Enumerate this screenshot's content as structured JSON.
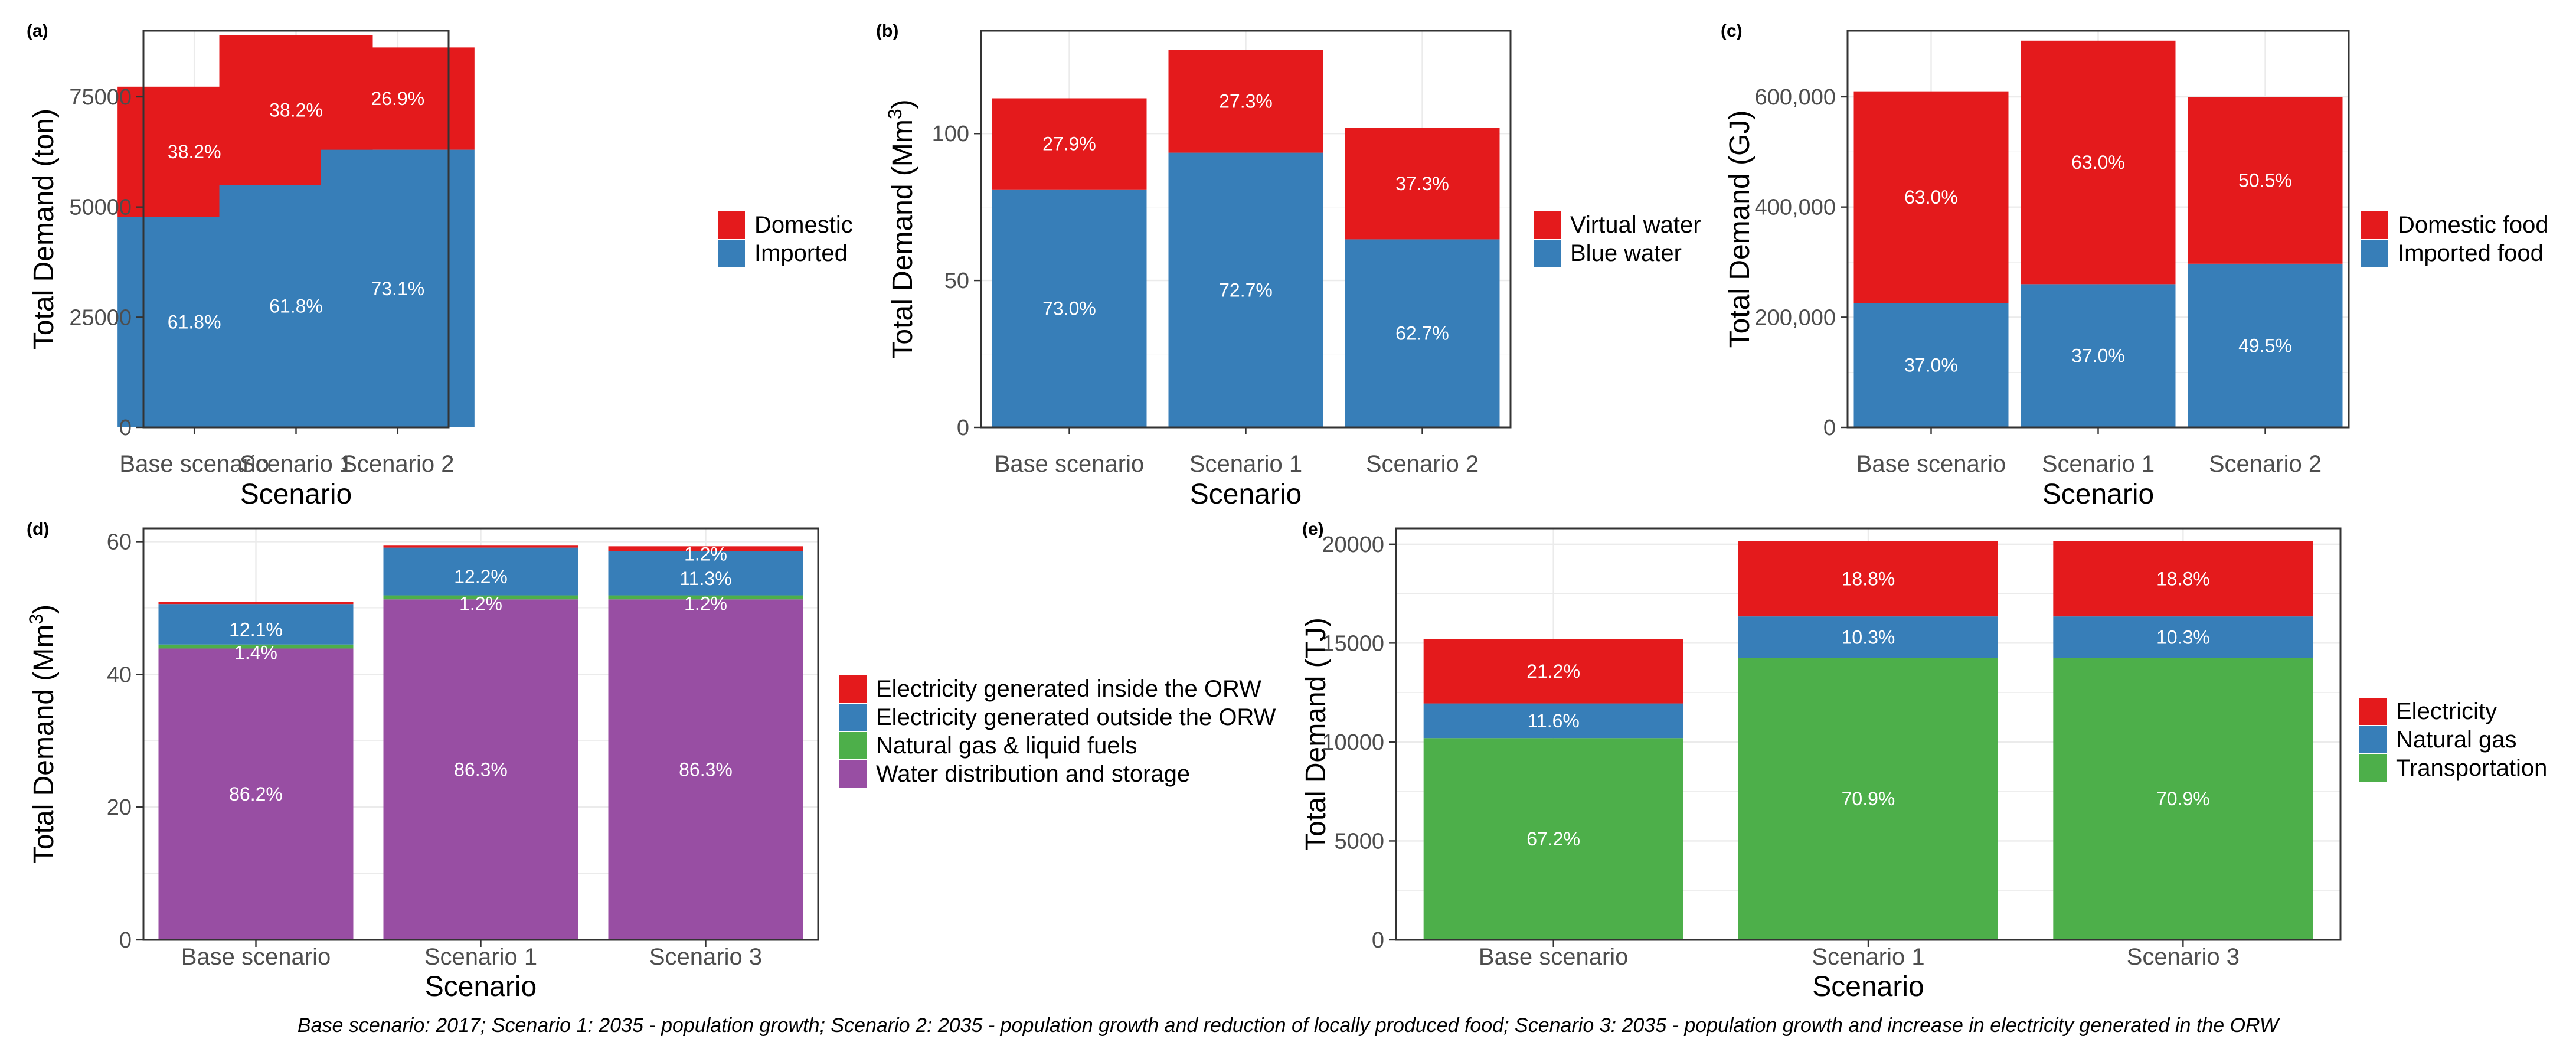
{
  "colors": {
    "red": "#e41a1c",
    "blue": "#377eb8",
    "green": "#4daf4a",
    "purple": "#984ea3",
    "panel_border": "#333333",
    "grid": "#ebebeb",
    "tick_text": "#4d4d4d"
  },
  "caption": "Base scenario: 2017; Scenario 1: 2035 - population growth; Scenario 2: 2035 - population growth and reduction of locally produced food; Scenario 3: 2035 - population growth and increase in electricity generated in the ORW",
  "chart_data": [
    {
      "panel": "(a)",
      "type": "bar",
      "stacked": true,
      "xlabel": "Scenario",
      "ylabel": "Total Demand (ton)",
      "ylim": [
        0,
        90000
      ],
      "yticks": [
        0,
        25000,
        50000,
        75000
      ],
      "ytick_labels": [
        "0",
        "25000",
        "50000",
        "75000"
      ],
      "categories": [
        "Base scenario",
        "Scenario 1",
        "Scenario 2"
      ],
      "series": [
        {
          "name": "Imported",
          "color": "#377eb8",
          "values": [
            47800,
            55000,
            63000
          ],
          "labels": [
            "61.8%",
            "61.8%",
            "73.1%"
          ]
        },
        {
          "name": "Domestic",
          "color": "#e41a1c",
          "values": [
            29500,
            34000,
            23200
          ],
          "labels": [
            "38.2%",
            "38.2%",
            "26.9%"
          ]
        }
      ],
      "legend": {
        "placement": "right",
        "entries": [
          "Domestic",
          "Imported"
        ]
      }
    },
    {
      "panel": "(b)",
      "type": "bar",
      "stacked": true,
      "xlabel": "Scenario",
      "ylabel": "Total Demand (Mm",
      "ylabel_sup": "3",
      "ylabel_end": ")",
      "ylim": [
        0,
        135
      ],
      "yticks": [
        0,
        50,
        100
      ],
      "ytick_labels": [
        "0",
        "50",
        "100"
      ],
      "categories": [
        "Base scenario",
        "Scenario 1",
        "Scenario 2"
      ],
      "series": [
        {
          "name": "Blue water",
          "color": "#377eb8",
          "values": [
            81,
            93.5,
            64
          ],
          "labels": [
            "73.0%",
            "72.7%",
            "62.7%"
          ]
        },
        {
          "name": "Virtual water",
          "color": "#e41a1c",
          "values": [
            31,
            35,
            38
          ],
          "labels": [
            "27.9%",
            "27.3%",
            "37.3%"
          ]
        }
      ],
      "legend": {
        "placement": "right",
        "entries": [
          "Virtual water",
          "Blue water"
        ]
      }
    },
    {
      "panel": "(c)",
      "type": "bar",
      "stacked": true,
      "xlabel": "Scenario",
      "ylabel": "Total Demand (GJ)",
      "ylim": [
        0,
        720000
      ],
      "yticks": [
        0,
        200000,
        400000,
        600000
      ],
      "ytick_labels": [
        "0",
        "200,000",
        "400,000",
        "600,000"
      ],
      "categories": [
        "Base scenario",
        "Scenario 1",
        "Scenario 2"
      ],
      "series": [
        {
          "name": "Imported food",
          "color": "#377eb8",
          "values": [
            226000,
            260000,
            297000
          ],
          "labels": [
            "37.0%",
            "37.0%",
            "49.5%"
          ]
        },
        {
          "name": "Domestic food",
          "color": "#e41a1c",
          "values": [
            384000,
            442000,
            303000
          ],
          "labels": [
            "63.0%",
            "63.0%",
            "50.5%"
          ]
        }
      ],
      "legend": {
        "placement": "right",
        "entries": [
          "Domestic food",
          "Imported food"
        ]
      }
    },
    {
      "panel": "(d)",
      "type": "bar",
      "stacked": true,
      "xlabel": "Scenario",
      "ylabel": "Total Demand (Mm",
      "ylabel_sup": "3",
      "ylabel_end": ")",
      "ylim": [
        0,
        62
      ],
      "yticks": [
        0,
        20,
        40,
        60
      ],
      "ytick_labels": [
        "0",
        "20",
        "40",
        "60"
      ],
      "categories": [
        "Base scenario",
        "Scenario 1",
        "Scenario 3"
      ],
      "series": [
        {
          "name": "Water distribution and storage",
          "color": "#984ea3",
          "values": [
            43.9,
            51.3,
            51.3
          ],
          "labels": [
            "86.2%",
            "86.3%",
            "86.3%"
          ]
        },
        {
          "name": "Natural gas & liquid fuels",
          "color": "#4daf4a",
          "values": [
            0.6,
            0.6,
            0.6
          ],
          "labels": [
            "1.4%",
            "1.2%",
            "1.2%"
          ]
        },
        {
          "name": "Electricity generated outside the ORW",
          "color": "#377eb8",
          "values": [
            6.1,
            7.2,
            6.7
          ],
          "labels": [
            "12.1%",
            "12.2%",
            "11.3%"
          ]
        },
        {
          "name": "Electricity generated inside the ORW",
          "color": "#e41a1c",
          "values": [
            0.3,
            0.3,
            0.7
          ],
          "labels": [
            "",
            "",
            "1.2%"
          ]
        }
      ],
      "legend": {
        "placement": "right",
        "entries": [
          "Electricity generated inside the ORW",
          "Electricity generated outside the ORW",
          "Natural gas & liquid fuels",
          "Water distribution and storage"
        ]
      }
    },
    {
      "panel": "(e)",
      "type": "bar",
      "stacked": true,
      "xlabel": "Scenario",
      "ylabel": "Total Demand (TJ)",
      "ylim": [
        0,
        20800
      ],
      "yticks": [
        0,
        5000,
        10000,
        15000,
        20000
      ],
      "ytick_labels": [
        "0",
        "5000",
        "10000",
        "15000",
        "20000"
      ],
      "categories": [
        "Base scenario",
        "Scenario 1",
        "Scenario 3"
      ],
      "series": [
        {
          "name": "Transportation",
          "color": "#4daf4a",
          "values": [
            10200,
            14250,
            14250
          ],
          "labels": [
            "67.2%",
            "70.9%",
            "70.9%"
          ]
        },
        {
          "name": "Natural gas",
          "color": "#377eb8",
          "values": [
            1750,
            2100,
            2100
          ],
          "labels": [
            "11.6%",
            "10.3%",
            "10.3%"
          ]
        },
        {
          "name": "Electricity",
          "color": "#e41a1c",
          "values": [
            3250,
            3800,
            3800
          ],
          "labels": [
            "21.2%",
            "18.8%",
            "18.8%"
          ]
        }
      ],
      "legend": {
        "placement": "right",
        "entries": [
          "Electricity",
          "Natural gas",
          "Transportation"
        ]
      }
    }
  ]
}
